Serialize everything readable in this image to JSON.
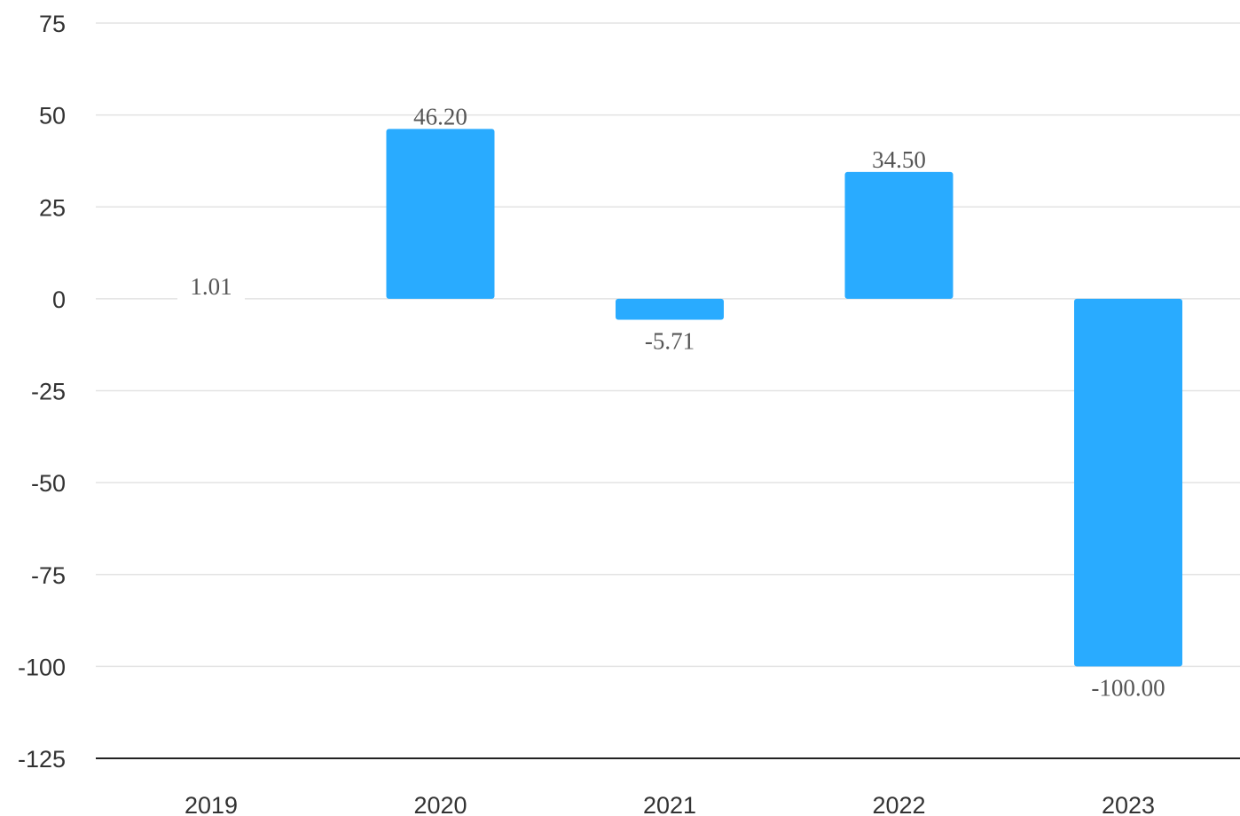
{
  "chart_data": {
    "type": "bar",
    "title": "",
    "xlabel": "",
    "ylabel": "",
    "categories": [
      "2019",
      "2020",
      "2021",
      "2022",
      "2023"
    ],
    "values": [
      1.01,
      46.2,
      -5.71,
      34.5,
      -100
    ],
    "value_labels": [
      "1.01",
      "46.20",
      "-5.71",
      "34.50",
      "-100.00"
    ],
    "ylim": [
      -125,
      75
    ],
    "yticks": [
      "75",
      "50",
      "25",
      "0",
      "-25",
      "-50",
      "-75",
      "-100",
      "-125"
    ],
    "grid": true,
    "legend": "none",
    "bar_color": "#29abff"
  }
}
